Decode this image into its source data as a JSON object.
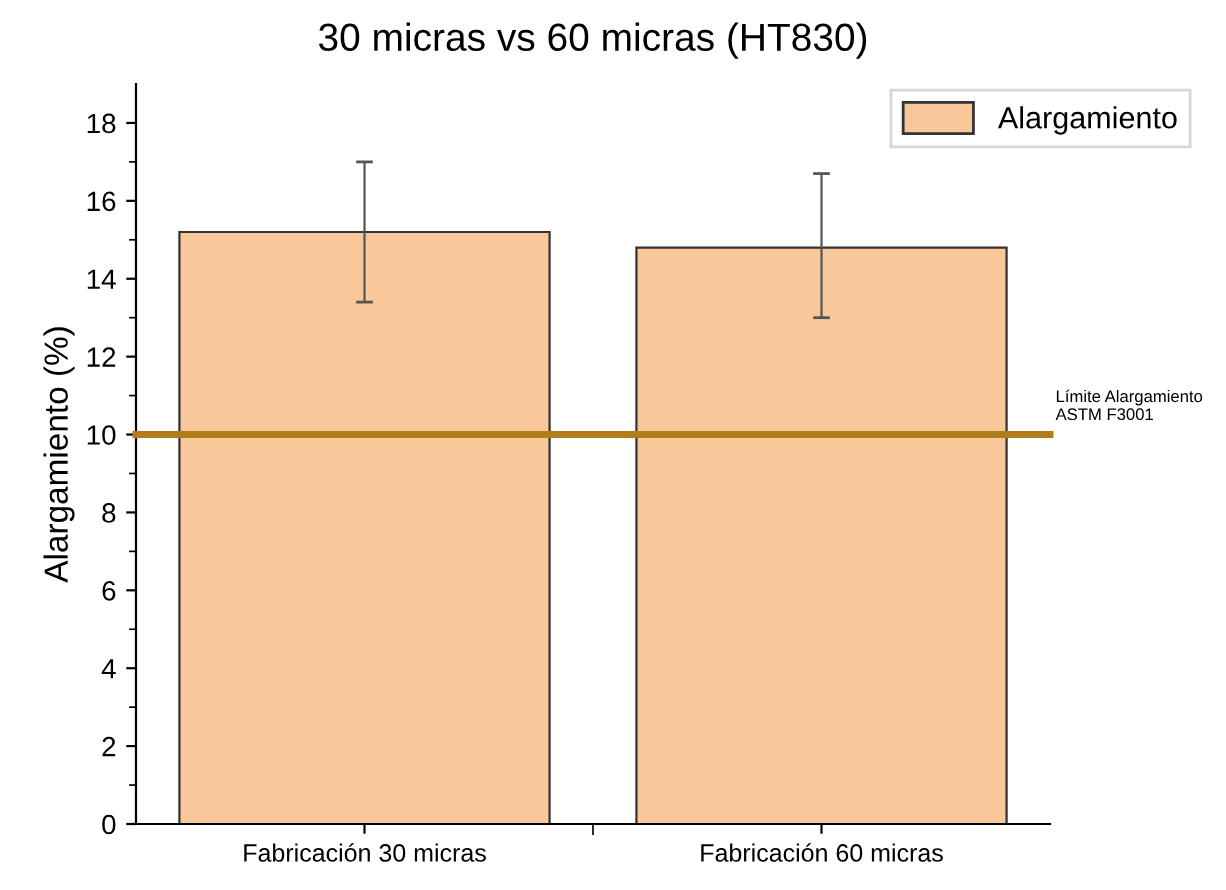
{
  "chart_data": {
    "type": "bar",
    "title": "30 micras vs 60 micras (HT830)",
    "ylabel": "Alargamiento (%)",
    "categories": [
      "Fabricación 30 micras",
      "Fabricación 60 micras"
    ],
    "series": [
      {
        "name": "Alargamiento",
        "color": "#f9c89a",
        "values": [
          15.2,
          14.8
        ],
        "errors": [
          [
            13.4,
            17.0
          ],
          [
            13.0,
            16.7
          ]
        ]
      }
    ],
    "ylim": [
      0,
      19
    ],
    "yticks": [
      0,
      2,
      4,
      6,
      8,
      10,
      12,
      14,
      16,
      18
    ],
    "ref_lines": [
      {
        "axis": "y",
        "value": 10,
        "label": "Límite Alargamiento\nASTM F3001",
        "color": "#b07d1a"
      }
    ],
    "legend": "top right",
    "grid": false
  }
}
